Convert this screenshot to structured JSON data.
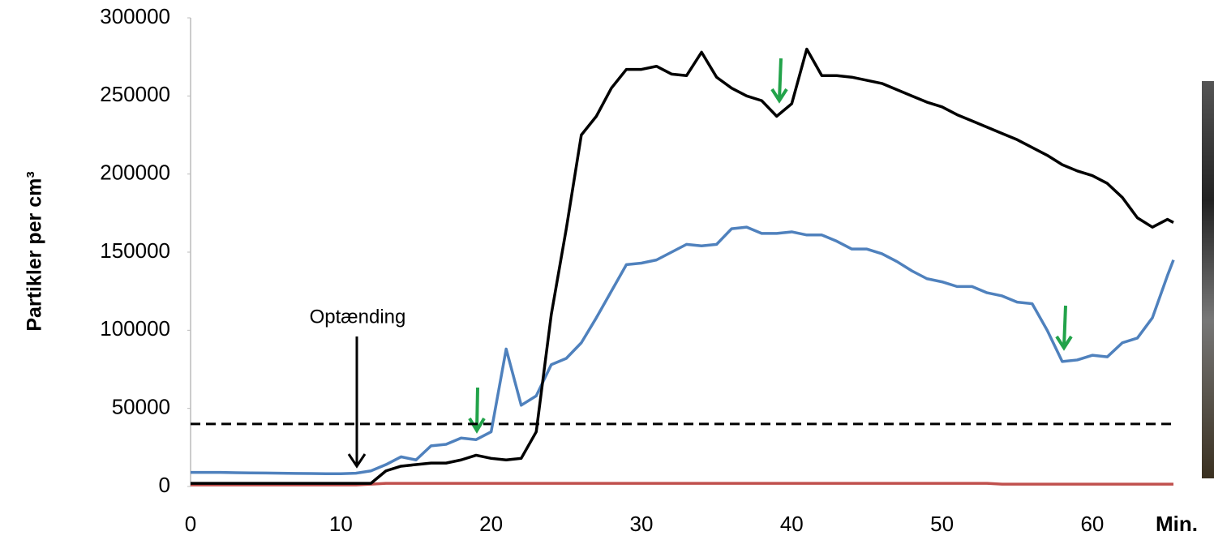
{
  "chart_data": {
    "type": "line",
    "y_label": "Partikler per cm³",
    "x_label": "Min.",
    "annotation": "Optænding",
    "x": [
      0,
      1,
      2,
      3,
      4,
      5,
      6,
      7,
      8,
      9,
      10,
      11,
      12,
      13,
      14,
      15,
      16,
      17,
      18,
      19,
      20,
      21,
      22,
      23,
      24,
      25,
      26,
      27,
      28,
      29,
      30,
      31,
      32,
      33,
      34,
      35,
      36,
      37,
      38,
      39,
      40,
      41,
      42,
      43,
      44,
      45,
      46,
      47,
      48,
      49,
      50,
      51,
      52,
      53,
      54,
      55,
      56,
      57,
      58,
      59,
      60,
      61,
      62,
      63,
      64,
      65,
      65.4
    ],
    "series": [
      {
        "color": "#4f81bd",
        "values": [
          9000,
          9000,
          9000,
          8800,
          8700,
          8600,
          8500,
          8400,
          8300,
          8200,
          8200,
          8500,
          10000,
          14000,
          19000,
          17000,
          26000,
          27000,
          31000,
          30000,
          35000,
          88000,
          52000,
          58000,
          78000,
          82000,
          92000,
          108000,
          125000,
          142000,
          143000,
          145000,
          150000,
          155000,
          154000,
          155000,
          165000,
          166000,
          162000,
          162000,
          163000,
          161000,
          161000,
          157000,
          152000,
          152000,
          149000,
          144000,
          138000,
          133000,
          131000,
          128000,
          128000,
          124000,
          122000,
          118000,
          117000,
          100000,
          80000,
          81000,
          84000,
          83000,
          92000,
          95000,
          108000,
          135000,
          145000
        ]
      },
      {
        "color": "#000000",
        "values": [
          2000,
          2000,
          2000,
          2000,
          2000,
          2000,
          2000,
          2000,
          2000,
          2000,
          2000,
          2000,
          2000,
          10000,
          13000,
          14000,
          15000,
          15000,
          17000,
          20000,
          18000,
          17000,
          18000,
          35000,
          110000,
          165000,
          225000,
          237000,
          255000,
          267000,
          267000,
          269000,
          264000,
          263000,
          278000,
          262000,
          255000,
          250000,
          247000,
          237000,
          245000,
          280000,
          263000,
          263000,
          262000,
          260000,
          258000,
          254000,
          250000,
          246000,
          243000,
          238000,
          234000,
          230000,
          226000,
          222000,
          217000,
          212000,
          206000,
          202000,
          199000,
          194000,
          185000,
          172000,
          166000,
          171000,
          169000
        ]
      },
      {
        "color": "#c0504d",
        "values": [
          1000,
          1000,
          1000,
          1000,
          1000,
          1000,
          1000,
          1000,
          1000,
          1000,
          1000,
          1000,
          1500,
          2000,
          2000,
          2000,
          2000,
          2000,
          2000,
          2000,
          2000,
          2000,
          2000,
          2000,
          2000,
          2000,
          2000,
          2000,
          2000,
          2000,
          2000,
          2000,
          2000,
          2000,
          2000,
          2000,
          2000,
          2000,
          2000,
          2000,
          2000,
          2000,
          2000,
          2000,
          2000,
          2000,
          2000,
          2000,
          2000,
          2000,
          2000,
          2000,
          2000,
          2000,
          1500,
          1500,
          1500,
          1500,
          1500,
          1500,
          1500,
          1500,
          1500,
          1500,
          1500,
          1500,
          1500
        ]
      }
    ],
    "threshold": 40000,
    "xlim": [
      0,
      65.4
    ],
    "xticks": [
      0,
      10,
      20,
      30,
      40,
      50,
      60
    ],
    "ylim": [
      0,
      300000
    ],
    "yticks": [
      0,
      50000,
      100000,
      150000,
      200000,
      250000,
      300000
    ]
  }
}
